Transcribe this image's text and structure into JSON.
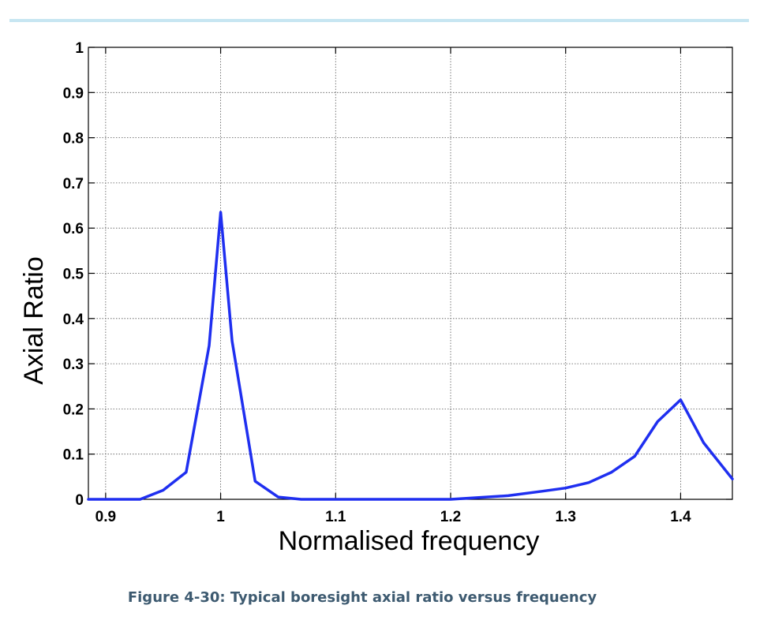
{
  "chart_data": {
    "type": "line",
    "title": "",
    "xlabel": "Normalised frequency",
    "ylabel": "Axial Ratio",
    "xlim": [
      0.885,
      1.445
    ],
    "ylim": [
      0,
      1
    ],
    "xticks": [
      0.9,
      1.0,
      1.1,
      1.2,
      1.3,
      1.4
    ],
    "xtick_labels": [
      "0.9",
      "1",
      "1.1",
      "1.2",
      "1.3",
      "1.4"
    ],
    "yticks": [
      0,
      0.1,
      0.2,
      0.3,
      0.4,
      0.5,
      0.6,
      0.7,
      0.8,
      0.9,
      1.0
    ],
    "ytick_labels": [
      "0",
      "0.1",
      "0.2",
      "0.3",
      "0.4",
      "0.5",
      "0.6",
      "0.7",
      "0.8",
      "0.9",
      "1"
    ],
    "grid": true,
    "line_color": "#1f2ff0",
    "series": [
      {
        "x": [
          0.885,
          0.91,
          0.93,
          0.95,
          0.97,
          0.99,
          1.0,
          1.01,
          1.03,
          1.05,
          1.07,
          1.1,
          1.15,
          1.2,
          1.25,
          1.28,
          1.3,
          1.32,
          1.34,
          1.36,
          1.38,
          1.4,
          1.42,
          1.445
        ],
        "y": [
          0.0,
          0.0,
          0.0,
          0.02,
          0.06,
          0.34,
          0.635,
          0.35,
          0.04,
          0.005,
          0.0,
          0.0,
          0.0,
          0.0,
          0.008,
          0.018,
          0.025,
          0.037,
          0.06,
          0.095,
          0.172,
          0.22,
          0.125,
          0.045
        ]
      }
    ]
  },
  "caption": "Figure 4-30: Typical boresight axial ratio versus frequency"
}
